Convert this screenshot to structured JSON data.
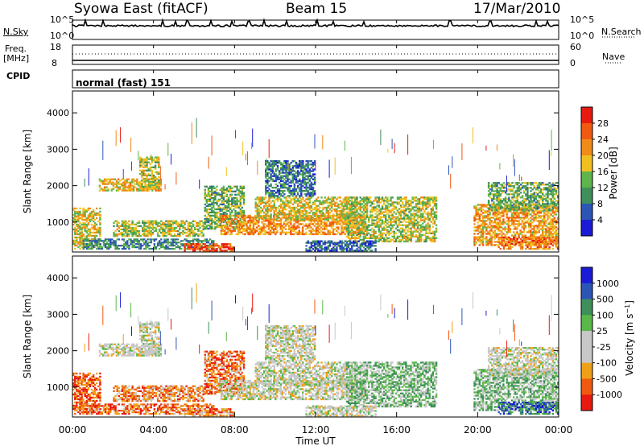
{
  "header": {
    "station": "Syowa East (fitACF)",
    "beam": "Beam 15",
    "date": "17/Mar/2010"
  },
  "nsky_panel": {
    "left_label": "N.Sky",
    "right_label": "N.Search",
    "left_ticks": [
      "10^5",
      "10^0"
    ],
    "right_ticks": [
      "10^5",
      "10^0"
    ]
  },
  "freq_panel": {
    "left_label_1": "Freq.",
    "left_label_2": "[MHz]",
    "right_label": "Nave",
    "left_ticks": [
      "18",
      "8"
    ],
    "right_ticks": [
      "60",
      "0"
    ]
  },
  "cpid": {
    "label": "CPID",
    "value": "normal (fast) 151"
  },
  "colors": {
    "power": [
      "#1b1bd6",
      "#2d55b5",
      "#3e8f5a",
      "#5fb44c",
      "#f0c020",
      "#f08a18",
      "#f05a10",
      "#e81a10"
    ],
    "velocity": [
      "#e81a10",
      "#f05a10",
      "#f0a018",
      "#c8c8c8",
      "#c8c8c8",
      "#5ab84a",
      "#3e8f5a",
      "#2d55b5",
      "#1b1bd6"
    ]
  },
  "chart_data": [
    {
      "type": "heatmap",
      "title": "",
      "xlabel": "Time UT",
      "ylabel": "Slant Range [km]",
      "x_ticks": [
        "00:00",
        "04:00",
        "08:00",
        "12:00",
        "16:00",
        "20:00",
        "00:00"
      ],
      "y_ticks": [
        "1000",
        "2000",
        "3000",
        "4000"
      ],
      "xlim_hours": [
        0,
        24
      ],
      "ylim_km": [
        180,
        4600
      ],
      "colorbar": {
        "label": "Power [dB]",
        "ticks": [
          "4",
          "8",
          "12",
          "16",
          "20",
          "24",
          "28"
        ],
        "range": [
          0,
          32
        ]
      },
      "echo_regions": [
        {
          "t_start": 0.0,
          "t_end": 1.4,
          "r_min": 250,
          "r_max": 1400,
          "level": 0.55
        },
        {
          "t_start": 1.3,
          "t_end": 4.4,
          "r_min": 1850,
          "r_max": 2200,
          "level": 0.6
        },
        {
          "t_start": 3.3,
          "t_end": 4.3,
          "r_min": 1900,
          "r_max": 2800,
          "level": 0.5
        },
        {
          "t_start": 2.0,
          "t_end": 6.5,
          "r_min": 600,
          "r_max": 1050,
          "level": 0.5
        },
        {
          "t_start": 0.5,
          "t_end": 7.0,
          "r_min": 250,
          "r_max": 550,
          "level": 0.3
        },
        {
          "t_start": 5.5,
          "t_end": 8.0,
          "r_min": 200,
          "r_max": 420,
          "level": 0.85
        },
        {
          "t_start": 6.5,
          "t_end": 8.5,
          "r_min": 800,
          "r_max": 2000,
          "level": 0.4
        },
        {
          "t_start": 7.3,
          "t_end": 14.5,
          "r_min": 650,
          "r_max": 1200,
          "level": 0.7
        },
        {
          "t_start": 9.0,
          "t_end": 14.0,
          "r_min": 1050,
          "r_max": 1700,
          "level": 0.55
        },
        {
          "t_start": 9.5,
          "t_end": 12.0,
          "r_min": 1700,
          "r_max": 2700,
          "level": 0.25
        },
        {
          "t_start": 13.5,
          "t_end": 18.0,
          "r_min": 450,
          "r_max": 1700,
          "level": 0.5
        },
        {
          "t_start": 11.5,
          "t_end": 15.0,
          "r_min": 200,
          "r_max": 500,
          "level": 0.2
        },
        {
          "t_start": 19.8,
          "t_end": 24.0,
          "r_min": 350,
          "r_max": 1500,
          "level": 0.65
        },
        {
          "t_start": 20.5,
          "t_end": 24.0,
          "r_min": 1300,
          "r_max": 2100,
          "level": 0.4
        },
        {
          "t_start": 21.0,
          "t_end": 24.0,
          "r_min": 250,
          "r_max": 600,
          "level": 0.75
        }
      ]
    },
    {
      "type": "heatmap",
      "title": "",
      "xlabel": "Time UT",
      "ylabel": "Slant Range [km]",
      "x_ticks": [
        "00:00",
        "04:00",
        "08:00",
        "12:00",
        "16:00",
        "20:00",
        "00:00"
      ],
      "y_ticks": [
        "1000",
        "2000",
        "3000",
        "4000"
      ],
      "xlim_hours": [
        0,
        24
      ],
      "ylim_km": [
        180,
        4600
      ],
      "colorbar": {
        "label": "Velocity [m s^-1]",
        "ticks": [
          "1000",
          "500",
          "100",
          "25",
          "-25",
          "-100",
          "-500",
          "-1000"
        ]
      },
      "echo_regions": [
        {
          "t_start": 0.0,
          "t_end": 1.4,
          "r_min": 250,
          "r_max": 1400,
          "level": 0.15
        },
        {
          "t_start": 1.3,
          "t_end": 4.4,
          "r_min": 1850,
          "r_max": 2200,
          "level": 0.45
        },
        {
          "t_start": 3.3,
          "t_end": 4.3,
          "r_min": 1900,
          "r_max": 2800,
          "level": 0.45
        },
        {
          "t_start": 2.0,
          "t_end": 6.5,
          "r_min": 600,
          "r_max": 1050,
          "level": 0.25
        },
        {
          "t_start": 0.5,
          "t_end": 7.0,
          "r_min": 250,
          "r_max": 550,
          "level": 0.2
        },
        {
          "t_start": 5.5,
          "t_end": 8.0,
          "r_min": 200,
          "r_max": 420,
          "level": 0.25
        },
        {
          "t_start": 6.5,
          "t_end": 8.5,
          "r_min": 800,
          "r_max": 2000,
          "level": 0.2
        },
        {
          "t_start": 7.3,
          "t_end": 14.5,
          "r_min": 650,
          "r_max": 1200,
          "level": 0.45
        },
        {
          "t_start": 9.0,
          "t_end": 14.0,
          "r_min": 1050,
          "r_max": 1700,
          "level": 0.45
        },
        {
          "t_start": 9.5,
          "t_end": 12.0,
          "r_min": 1700,
          "r_max": 2700,
          "level": 0.45
        },
        {
          "t_start": 13.5,
          "t_end": 18.0,
          "r_min": 450,
          "r_max": 1700,
          "level": 0.6
        },
        {
          "t_start": 11.5,
          "t_end": 15.0,
          "r_min": 200,
          "r_max": 500,
          "level": 0.45
        },
        {
          "t_start": 19.8,
          "t_end": 24.0,
          "r_min": 350,
          "r_max": 1500,
          "level": 0.6
        },
        {
          "t_start": 20.5,
          "t_end": 24.0,
          "r_min": 1300,
          "r_max": 2100,
          "level": 0.45
        },
        {
          "t_start": 21.0,
          "t_end": 24.0,
          "r_min": 250,
          "r_max": 600,
          "level": 0.8
        }
      ]
    }
  ]
}
